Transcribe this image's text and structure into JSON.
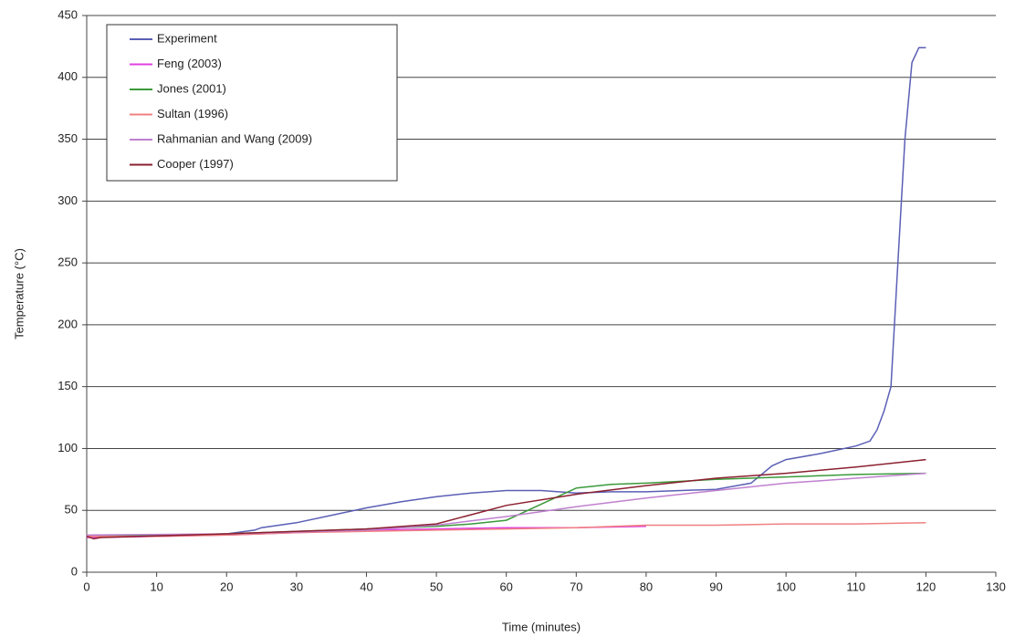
{
  "chart_data": {
    "type": "line",
    "x_label": "Time (minutes)",
    "y_label": "Temperature (°C)",
    "xlim": [
      0,
      130
    ],
    "ylim": [
      0,
      450
    ],
    "xticks": [
      0,
      10,
      20,
      30,
      40,
      50,
      60,
      70,
      80,
      90,
      100,
      110,
      120,
      130
    ],
    "yticks": [
      0,
      50,
      100,
      150,
      200,
      250,
      300,
      350,
      400,
      450
    ],
    "grid": true,
    "legend": "upper left",
    "series": [
      {
        "name": "Experiment",
        "color": "#5b5fb5",
        "x": [
          0,
          5,
          10,
          15,
          20,
          24,
          25,
          30,
          35,
          40,
          45,
          50,
          55,
          60,
          65,
          70,
          75,
          80,
          85,
          90,
          95,
          98,
          100,
          105,
          110,
          112,
          113,
          114,
          115,
          116,
          117,
          118,
          119,
          120
        ],
        "values": [
          30,
          30,
          30,
          30,
          31,
          34,
          36,
          40,
          46,
          52,
          57,
          61,
          64,
          66,
          66,
          64,
          65,
          65,
          66,
          67,
          72,
          86,
          91,
          96,
          102,
          106,
          115,
          130,
          150,
          250,
          350,
          412,
          424,
          424
        ]
      },
      {
        "name": "Feng (2003)",
        "color": "#e040e0",
        "x": [
          0,
          10,
          20,
          30,
          40,
          50,
          60,
          70,
          80
        ],
        "values": [
          28,
          29,
          30,
          32,
          34,
          35,
          36,
          36,
          37
        ]
      },
      {
        "name": "Jones (2001)",
        "color": "#3a9a3a",
        "x": [
          0,
          20,
          40,
          50,
          55,
          60,
          65,
          70,
          75,
          80,
          90,
          100,
          110,
          120
        ],
        "values": [
          29,
          31,
          35,
          37,
          39,
          42,
          55,
          68,
          71,
          72,
          75,
          77,
          79,
          80
        ]
      },
      {
        "name": "Sultan (1996)",
        "color": "#f08080",
        "x": [
          0,
          10,
          20,
          30,
          40,
          50,
          60,
          70,
          80,
          90,
          100,
          110,
          120
        ],
        "values": [
          29,
          29,
          30,
          32,
          33,
          34,
          35,
          36,
          38,
          38,
          39,
          39,
          40
        ]
      },
      {
        "name": "Rahmanian and Wang (2009)",
        "color": "#c080d0",
        "x": [
          0,
          20,
          40,
          50,
          60,
          70,
          80,
          90,
          100,
          110,
          120
        ],
        "values": [
          30,
          31,
          34,
          38,
          45,
          53,
          60,
          66,
          72,
          76,
          80
        ]
      },
      {
        "name": "Cooper (1997)",
        "color": "#8b2030",
        "x": [
          0,
          1,
          2,
          20,
          40,
          50,
          60,
          70,
          80,
          90,
          100,
          110,
          120
        ],
        "values": [
          29,
          27,
          28,
          31,
          35,
          39,
          54,
          63,
          70,
          76,
          80,
          85,
          91
        ]
      }
    ]
  }
}
